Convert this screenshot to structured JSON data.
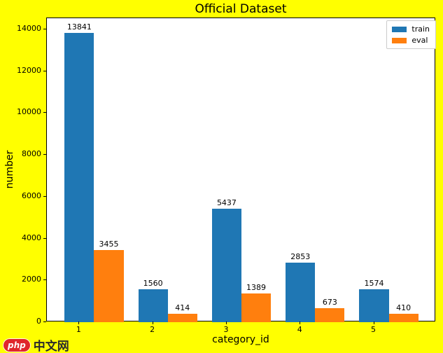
{
  "figure": {
    "background": "#ffff00"
  },
  "chart_data": {
    "type": "bar",
    "title": "Official Dataset",
    "xlabel": "category_id",
    "ylabel": "number",
    "categories": [
      "1",
      "2",
      "3",
      "4",
      "5"
    ],
    "series": [
      {
        "name": "train",
        "color": "#1f77b4",
        "values": [
          13841,
          1560,
          5437,
          2853,
          1574
        ]
      },
      {
        "name": "eval",
        "color": "#ff7f0e",
        "values": [
          3455,
          414,
          1389,
          673,
          410
        ]
      }
    ],
    "yticks": [
      0,
      2000,
      4000,
      6000,
      8000,
      10000,
      12000,
      14000
    ],
    "ylim": [
      0,
      14530
    ],
    "xlim": [
      0.56,
      5.84
    ],
    "bar_width": 0.4,
    "legend_position": "upper right",
    "legend_labels": [
      "train",
      "eval"
    ],
    "grid": false,
    "bar_value_labels": true,
    "plot_background": "#ffffff"
  },
  "watermark": {
    "brand": "php",
    "text": "中文网",
    "brand_color": "#e0262c"
  }
}
